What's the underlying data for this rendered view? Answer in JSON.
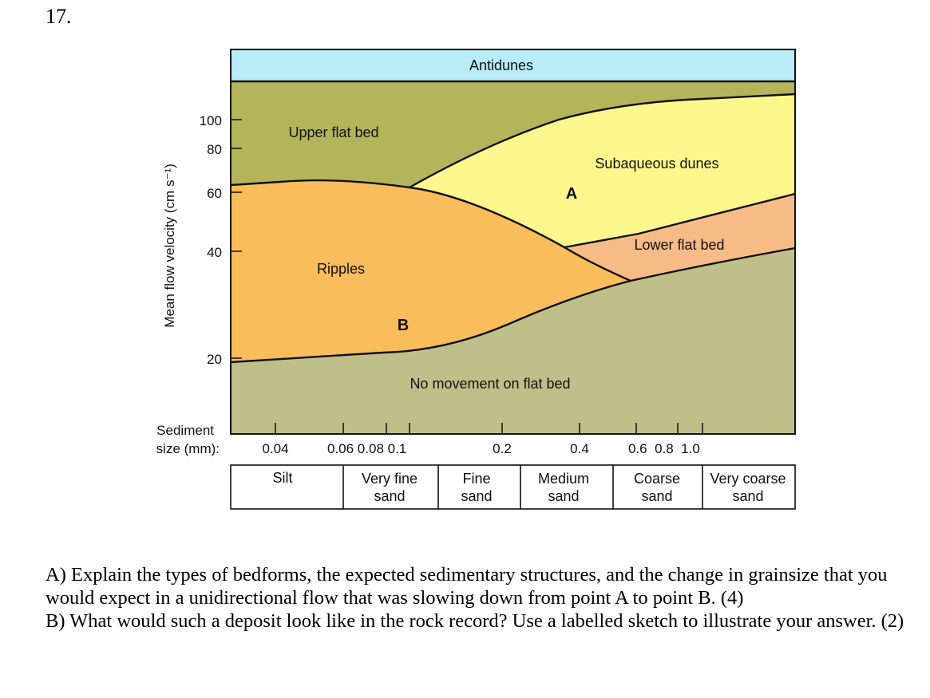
{
  "question_number": "17.",
  "diagram": {
    "y_axis_label": "Mean flow velocity (cm s⁻¹)",
    "y_ticks": [
      "100",
      "80",
      "60",
      "40",
      "20"
    ],
    "sediment_label_line1": "Sediment",
    "sediment_label_line2": "size (mm):",
    "x_ticks": [
      "0.04",
      "0.06 0.08 0.1",
      "0.2",
      "0.4",
      "0.6  0.8  1.0"
    ],
    "regions": {
      "antidunes": "Antidunes",
      "upper_flat_bed": "Upper flat bed",
      "subaqueous_dunes": "Subaqueous dunes",
      "lower_flat_bed": "Lower flat bed",
      "ripples": "Ripples",
      "no_movement": "No movement on flat bed"
    },
    "markers": {
      "a": "A",
      "b": "B"
    },
    "size_classes": [
      {
        "line1": "Silt",
        "line2": ""
      },
      {
        "line1": "Very fine",
        "line2": "sand"
      },
      {
        "line1": "Fine",
        "line2": "sand"
      },
      {
        "line1": "Medium",
        "line2": "sand"
      },
      {
        "line1": "Coarse",
        "line2": "sand"
      },
      {
        "line1": "Very coarse",
        "line2": "sand"
      }
    ],
    "colors": {
      "antidunes": "#b8ecf6",
      "upper_flat_bed": "#b4b45a",
      "subaqueous_dunes": "#fbf78c",
      "lower_flat_bed": "#f7bb87",
      "ripples": "#f9bd5c",
      "no_movement": "#bfbf89"
    }
  },
  "questions": {
    "a": "A) Explain the types of bedforms, the expected sedimentary structures, and the change in grainsize that you would expect in a unidirectional flow that was slowing down from point A to point B. (4)",
    "b": "B) What would such a deposit look like in the rock record? Use a labelled sketch to illustrate your answer. (2)"
  }
}
